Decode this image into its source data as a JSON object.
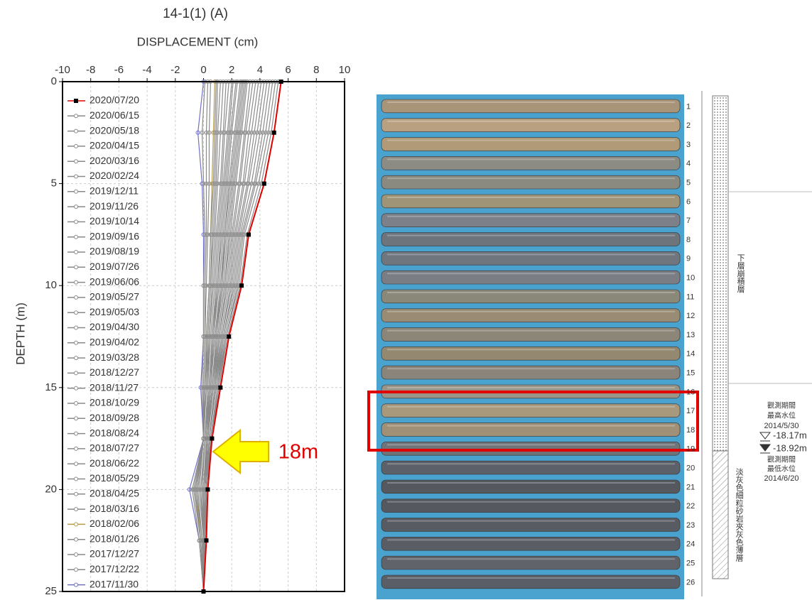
{
  "chart_data": {
    "type": "line",
    "title": "14-1(1) (A)",
    "x_label": "DISPLACEMENT (cm)",
    "y_label": "DEPTH (m)",
    "annotation": "18m",
    "xlim": [
      -10,
      10
    ],
    "xticks": [
      -10,
      -8,
      -6,
      -4,
      -2,
      0,
      2,
      4,
      6,
      8,
      10
    ],
    "ylim": [
      25,
      0
    ],
    "yticks": [
      0,
      5,
      10,
      15,
      20,
      25
    ],
    "grid": true,
    "y": [
      0,
      2.5,
      5,
      7.5,
      10,
      12.5,
      15,
      17.5,
      20,
      22.5,
      25
    ],
    "series": [
      {
        "name": "2020/07/20",
        "color": "#e00000",
        "values": [
          5.5,
          5.0,
          4.3,
          3.2,
          2.7,
          1.8,
          1.2,
          0.6,
          0.3,
          0.2,
          0
        ]
      },
      {
        "name": "2020/06/15",
        "color": "#8a8a8a",
        "values": [
          5.3,
          4.8,
          4.1,
          3.1,
          2.6,
          1.7,
          1.1,
          0.6,
          0.3,
          0.2,
          0
        ]
      },
      {
        "name": "2020/05/18",
        "color": "#8a8a8a",
        "values": [
          5.1,
          4.6,
          3.9,
          2.9,
          2.5,
          1.6,
          1.1,
          0.5,
          0.3,
          0.2,
          0
        ]
      },
      {
        "name": "2020/04/15",
        "color": "#8a8a8a",
        "values": [
          4.9,
          4.4,
          3.7,
          2.8,
          2.4,
          1.6,
          1.0,
          0.5,
          0.3,
          0.1,
          0
        ]
      },
      {
        "name": "2020/03/16",
        "color": "#8a8a8a",
        "values": [
          4.7,
          4.2,
          3.6,
          2.7,
          2.3,
          1.5,
          1.0,
          0.5,
          0.2,
          0.1,
          0
        ]
      },
      {
        "name": "2020/02/24",
        "color": "#8a8a8a",
        "values": [
          4.5,
          4.0,
          3.4,
          2.6,
          2.2,
          1.4,
          1.0,
          0.5,
          0.2,
          0.1,
          0
        ]
      },
      {
        "name": "2019/12/11",
        "color": "#8a8a8a",
        "values": [
          4.3,
          3.8,
          3.2,
          2.5,
          2.1,
          1.4,
          0.9,
          0.4,
          0.2,
          0.1,
          0
        ]
      },
      {
        "name": "2019/11/26",
        "color": "#8a8a8a",
        "values": [
          4.1,
          3.6,
          3.1,
          2.4,
          2.0,
          1.3,
          0.9,
          0.4,
          0.2,
          0.1,
          0
        ]
      },
      {
        "name": "2019/10/14",
        "color": "#8a8a8a",
        "values": [
          3.9,
          3.4,
          2.9,
          2.3,
          1.9,
          1.3,
          0.8,
          0.4,
          0.2,
          0.1,
          0
        ]
      },
      {
        "name": "2019/09/16",
        "color": "#8a8a8a",
        "values": [
          3.7,
          3.2,
          2.8,
          2.2,
          1.8,
          1.2,
          0.8,
          0.4,
          0.2,
          0.1,
          0
        ]
      },
      {
        "name": "2019/08/19",
        "color": "#8a8a8a",
        "values": [
          3.5,
          3.0,
          2.6,
          2.1,
          1.7,
          1.1,
          0.8,
          0.4,
          0.2,
          0.1,
          0
        ]
      },
      {
        "name": "2019/07/26",
        "color": "#8a8a8a",
        "values": [
          3.3,
          2.9,
          2.5,
          2.0,
          1.6,
          1.1,
          0.7,
          0.3,
          0.2,
          0.1,
          0
        ]
      },
      {
        "name": "2019/06/06",
        "color": "#8a8a8a",
        "values": [
          3.1,
          2.7,
          2.3,
          1.9,
          1.5,
          1.0,
          0.7,
          0.3,
          0.1,
          0.1,
          0
        ]
      },
      {
        "name": "2019/05/27",
        "color": "#8a8a8a",
        "values": [
          3.0,
          2.6,
          2.2,
          1.8,
          1.5,
          1.0,
          0.6,
          0.3,
          0.1,
          0.1,
          0
        ]
      },
      {
        "name": "2019/05/03",
        "color": "#8a8a8a",
        "values": [
          2.9,
          2.5,
          2.1,
          1.7,
          1.4,
          0.9,
          0.6,
          0.3,
          0.1,
          0.1,
          0
        ]
      },
      {
        "name": "2019/04/30",
        "color": "#8a8a8a",
        "values": [
          2.8,
          2.4,
          2.0,
          1.6,
          1.3,
          0.9,
          0.6,
          0.3,
          0.1,
          0.1,
          0
        ]
      },
      {
        "name": "2019/04/02",
        "color": "#8a8a8a",
        "values": [
          2.7,
          2.3,
          1.9,
          1.5,
          1.3,
          0.8,
          0.5,
          0.3,
          0.1,
          0,
          0
        ]
      },
      {
        "name": "2019/03/28",
        "color": "#8a8a8a",
        "values": [
          2.6,
          2.2,
          1.8,
          1.5,
          1.2,
          0.8,
          0.5,
          0.2,
          0.1,
          0,
          0
        ]
      },
      {
        "name": "2018/12/27",
        "color": "#8a8a8a",
        "values": [
          2.4,
          2.0,
          1.7,
          1.4,
          1.1,
          0.7,
          0.5,
          0.2,
          0.1,
          0,
          0
        ]
      },
      {
        "name": "2018/11/27",
        "color": "#8a8a8a",
        "values": [
          2.3,
          1.9,
          1.6,
          1.3,
          1.0,
          0.7,
          0.4,
          0.2,
          0,
          0,
          0
        ]
      },
      {
        "name": "2018/10/29",
        "color": "#8a8a8a",
        "values": [
          2.1,
          1.8,
          1.5,
          1.2,
          1.0,
          0.6,
          0.4,
          0.2,
          0,
          0,
          0
        ]
      },
      {
        "name": "2018/09/28",
        "color": "#8a8a8a",
        "values": [
          2.0,
          1.7,
          1.4,
          1.1,
          0.9,
          0.6,
          0.4,
          0.1,
          -0.1,
          0,
          0
        ]
      },
      {
        "name": "2018/08/24",
        "color": "#8a8a8a",
        "values": [
          1.8,
          1.5,
          1.3,
          1.0,
          0.8,
          0.5,
          0.3,
          0.1,
          -0.1,
          0,
          0
        ]
      },
      {
        "name": "2018/07/27",
        "color": "#8a8a8a",
        "values": [
          1.6,
          1.4,
          1.2,
          0.9,
          0.7,
          0.4,
          0.3,
          0.1,
          -0.2,
          0,
          0
        ]
      },
      {
        "name": "2018/06/22",
        "color": "#8a8a8a",
        "values": [
          1.4,
          1.2,
          1.0,
          0.8,
          0.6,
          0.4,
          0.2,
          0,
          -0.3,
          0,
          0
        ]
      },
      {
        "name": "2018/05/29",
        "color": "#8a8a8a",
        "values": [
          1.2,
          1.0,
          0.9,
          0.7,
          0.5,
          0.3,
          0.2,
          0,
          -0.4,
          -0.1,
          0
        ]
      },
      {
        "name": "2018/04/25",
        "color": "#8a8a8a",
        "values": [
          1.0,
          0.9,
          0.8,
          0.6,
          0.5,
          0.3,
          0.1,
          0,
          -0.5,
          -0.1,
          0
        ]
      },
      {
        "name": "2018/03/16",
        "color": "#8a8a8a",
        "values": [
          0.9,
          0.8,
          0.7,
          0.5,
          0.4,
          0.2,
          0.1,
          0,
          -0.6,
          -0.2,
          0
        ]
      },
      {
        "name": "2018/02/06",
        "color": "#b89a4a",
        "values": [
          0.8,
          0.7,
          0.6,
          0.5,
          0.4,
          0.2,
          0.1,
          0,
          -0.5,
          -0.2,
          0
        ]
      },
      {
        "name": "2018/01/26",
        "color": "#8a8a8a",
        "values": [
          0.5,
          0.4,
          0.4,
          0.3,
          0.2,
          0.1,
          0,
          0,
          -0.6,
          -0.2,
          0
        ]
      },
      {
        "name": "2017/12/27",
        "color": "#8a8a8a",
        "values": [
          0.3,
          0.2,
          0.2,
          0.2,
          0.1,
          0.1,
          0,
          0,
          -0.7,
          -0.2,
          0
        ]
      },
      {
        "name": "2017/12/22",
        "color": "#8a8a8a",
        "values": [
          0.1,
          -0.1,
          0,
          0.1,
          0,
          0,
          -0.1,
          0,
          -0.8,
          -0.3,
          0
        ]
      },
      {
        "name": "2017/11/30",
        "color": "#7070c8",
        "values": [
          0,
          -0.4,
          -0.1,
          0,
          0,
          0,
          -0.2,
          0,
          -1.0,
          -0.3,
          0
        ]
      }
    ]
  },
  "core_log": {
    "box_numbers": [
      1,
      2,
      3,
      4,
      5,
      6,
      7,
      8,
      9,
      10,
      11,
      12,
      13,
      14,
      15,
      16,
      17,
      18,
      19,
      20,
      21,
      22,
      23,
      24,
      25,
      26
    ],
    "upper_layer": "下層崩積層",
    "lower_layer": "淡灰色細粒砂岩夾灰色薄層",
    "high_water": {
      "period": "觀測期間",
      "label": "最高水位",
      "date": "2014/5/30",
      "depth": "-18.17m"
    },
    "low_water": {
      "depth": "-18.92m",
      "period": "觀測期間",
      "label": "最低水位",
      "date": "2014/6/20"
    }
  }
}
